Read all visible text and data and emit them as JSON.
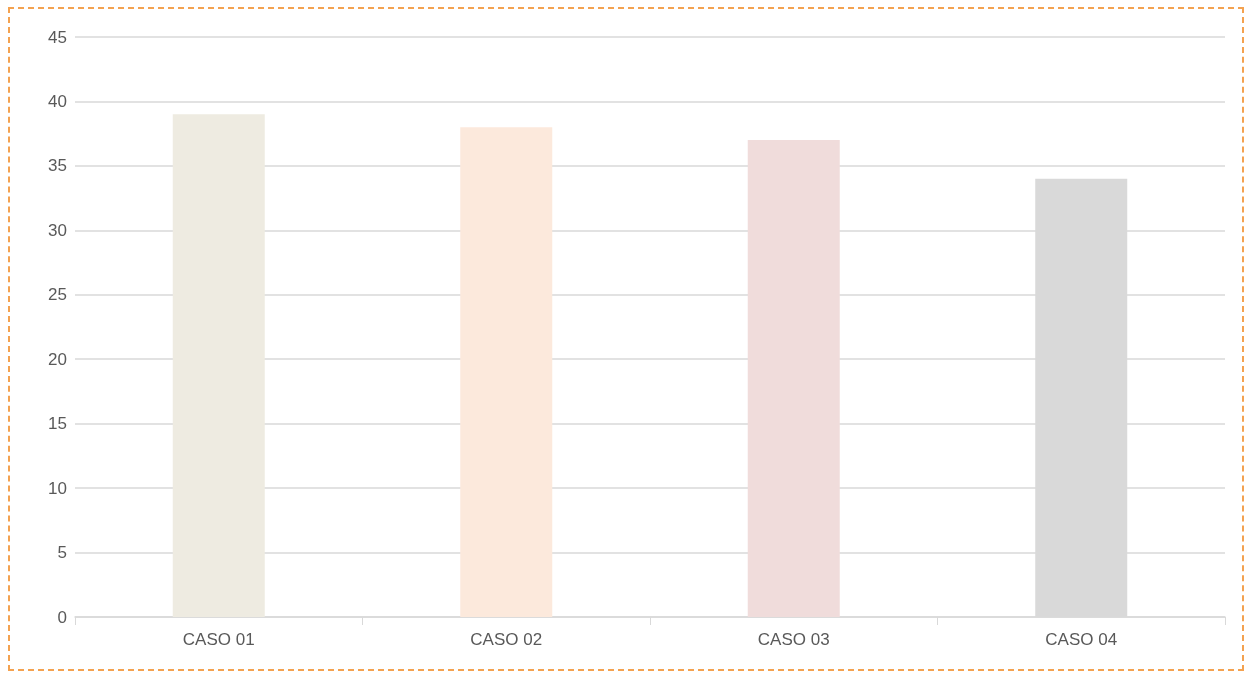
{
  "chart_data": {
    "type": "bar",
    "categories": [
      "CASO 01",
      "CASO 02",
      "CASO 03",
      "CASO 04"
    ],
    "values": [
      39,
      38,
      37,
      34
    ],
    "colors": [
      "#eeebe1",
      "#fce9dc",
      "#f0dcdb",
      "#d9d9d9"
    ],
    "ylim": [
      0,
      45
    ],
    "yticks": [
      0,
      5,
      10,
      15,
      20,
      25,
      30,
      35,
      40,
      45
    ],
    "grid": "y"
  }
}
